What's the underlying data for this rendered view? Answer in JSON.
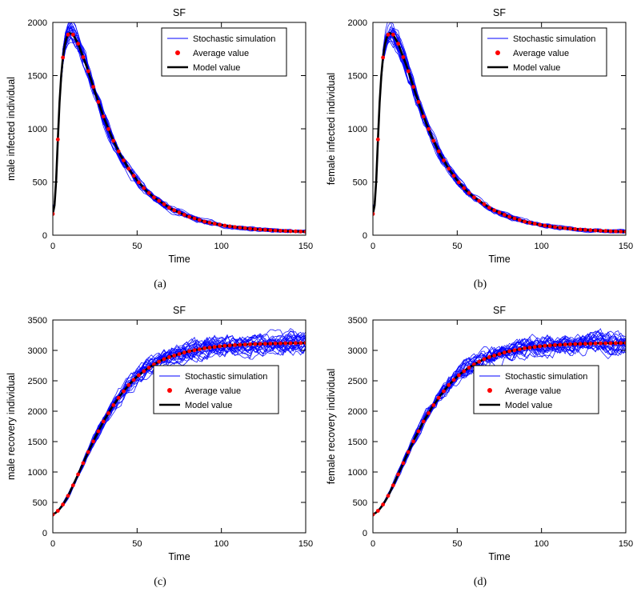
{
  "figure": {
    "background": "#ffffff"
  },
  "colors": {
    "simulation": "#0000ff",
    "average": "#ff0000",
    "model": "#000000",
    "axes": "#000000"
  },
  "legend_items": [
    {
      "label": "Stochastic simulation",
      "type": "line",
      "color_key": "simulation"
    },
    {
      "label": "Average value",
      "type": "dot",
      "color_key": "average"
    },
    {
      "label": "Model value",
      "type": "line-bold",
      "color_key": "model"
    }
  ],
  "chart_data": [
    {
      "id": "a",
      "type": "line",
      "title": "SF",
      "xlabel": "Time",
      "ylabel": "male infected individual",
      "sublabel": "(a)",
      "xlim": [
        0,
        150
      ],
      "ylim": [
        0,
        2000
      ],
      "xticks": [
        0,
        50,
        100,
        150
      ],
      "yticks": [
        0,
        500,
        1000,
        1500,
        2000
      ],
      "legend_position": "northeast",
      "sim_traces": 25,
      "sim_seed": 11,
      "avg_marker_step": 3,
      "series": [
        {
          "name": "Model value",
          "x": [
            0,
            1,
            2,
            3,
            4,
            5,
            6,
            7,
            8,
            9,
            10,
            12,
            15,
            20,
            25,
            30,
            35,
            40,
            45,
            50,
            55,
            60,
            70,
            80,
            90,
            100,
            110,
            120,
            130,
            140,
            150
          ],
          "y": [
            200,
            280,
            520,
            900,
            1250,
            1500,
            1670,
            1780,
            1850,
            1885,
            1900,
            1885,
            1800,
            1590,
            1345,
            1115,
            920,
            755,
            625,
            515,
            425,
            355,
            248,
            178,
            128,
            95,
            72,
            57,
            46,
            38,
            33
          ]
        }
      ]
    },
    {
      "id": "b",
      "type": "line",
      "title": "SF",
      "xlabel": "Time",
      "ylabel": "female infected individual",
      "sublabel": "(b)",
      "xlim": [
        0,
        150
      ],
      "ylim": [
        0,
        2000
      ],
      "xticks": [
        0,
        50,
        100,
        150
      ],
      "yticks": [
        0,
        500,
        1000,
        1500,
        2000
      ],
      "legend_position": "northeast",
      "sim_traces": 25,
      "sim_seed": 23,
      "avg_marker_step": 3,
      "series": [
        {
          "name": "Model value",
          "x": [
            0,
            1,
            2,
            3,
            4,
            5,
            6,
            7,
            8,
            9,
            10,
            12,
            15,
            20,
            25,
            30,
            35,
            40,
            45,
            50,
            55,
            60,
            70,
            80,
            90,
            100,
            110,
            120,
            130,
            140,
            150
          ],
          "y": [
            200,
            280,
            520,
            900,
            1250,
            1500,
            1670,
            1780,
            1850,
            1885,
            1900,
            1885,
            1800,
            1590,
            1345,
            1115,
            920,
            755,
            625,
            515,
            425,
            355,
            248,
            178,
            128,
            95,
            72,
            57,
            46,
            38,
            33
          ]
        }
      ]
    },
    {
      "id": "c",
      "type": "line",
      "title": "SF",
      "xlabel": "Time",
      "ylabel": "male recovery individual",
      "sublabel": "(c)",
      "xlim": [
        0,
        150
      ],
      "ylim": [
        0,
        3500
      ],
      "xticks": [
        0,
        50,
        100,
        150
      ],
      "yticks": [
        0,
        500,
        1000,
        1500,
        2000,
        2500,
        3000,
        3500
      ],
      "legend_position": "east",
      "sim_traces": 25,
      "sim_seed": 37,
      "avg_marker_step": 3,
      "series": [
        {
          "name": "Model value",
          "x": [
            0,
            2,
            4,
            6,
            8,
            10,
            15,
            20,
            25,
            30,
            35,
            40,
            45,
            50,
            55,
            60,
            65,
            70,
            80,
            90,
            100,
            110,
            120,
            130,
            140,
            150
          ],
          "y": [
            300,
            335,
            390,
            465,
            555,
            660,
            960,
            1270,
            1560,
            1830,
            2060,
            2260,
            2430,
            2570,
            2680,
            2770,
            2845,
            2900,
            2980,
            3035,
            3070,
            3092,
            3105,
            3113,
            3118,
            3122
          ]
        }
      ]
    },
    {
      "id": "d",
      "type": "line",
      "title": "SF",
      "xlabel": "Time",
      "ylabel": "female recovery individual",
      "sublabel": "(d)",
      "xlim": [
        0,
        150
      ],
      "ylim": [
        0,
        3500
      ],
      "xticks": [
        0,
        50,
        100,
        150
      ],
      "yticks": [
        0,
        500,
        1000,
        1500,
        2000,
        2500,
        3000,
        3500
      ],
      "legend_position": "east",
      "sim_traces": 25,
      "sim_seed": 49,
      "avg_marker_step": 3,
      "series": [
        {
          "name": "Model value",
          "x": [
            0,
            2,
            4,
            6,
            8,
            10,
            15,
            20,
            25,
            30,
            35,
            40,
            45,
            50,
            55,
            60,
            65,
            70,
            80,
            90,
            100,
            110,
            120,
            130,
            140,
            150
          ],
          "y": [
            300,
            335,
            390,
            465,
            555,
            660,
            960,
            1270,
            1560,
            1830,
            2060,
            2260,
            2430,
            2570,
            2680,
            2770,
            2845,
            2900,
            2980,
            3035,
            3070,
            3092,
            3105,
            3113,
            3118,
            3122
          ]
        }
      ]
    }
  ]
}
